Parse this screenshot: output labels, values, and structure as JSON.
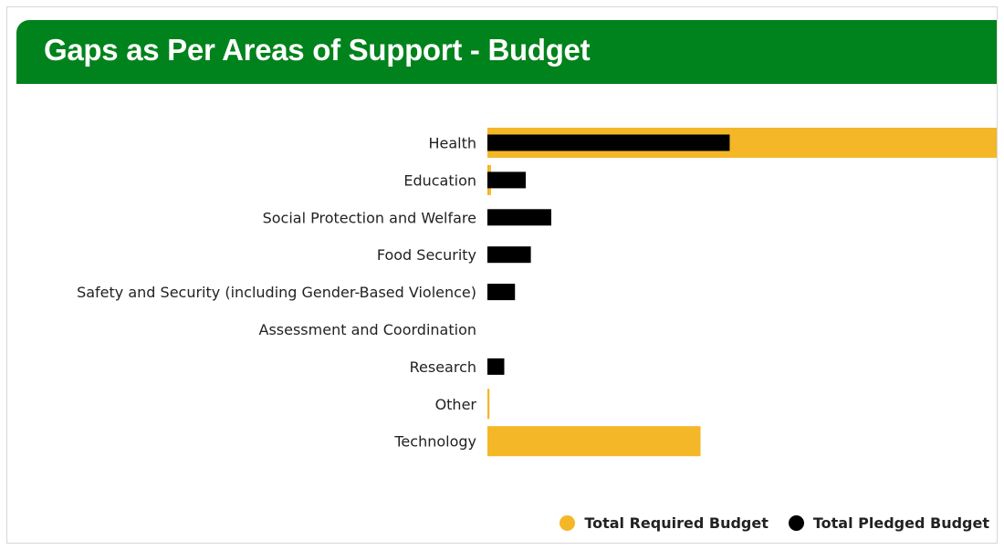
{
  "header": {
    "title": "Gaps as Per Areas of Support - Budget"
  },
  "colors": {
    "header": "#00821c",
    "required": "#f4b728",
    "pledged": "#000000"
  },
  "chart_data": {
    "type": "bar",
    "orientation": "horizontal",
    "title": "",
    "categories": [
      "Health",
      "Education",
      "Social Protection and Welfare",
      "Food Security",
      "Safety and Security (including Gender-Based Violence)",
      "Assessment and Coordination",
      "Research",
      "Other",
      "Technology"
    ],
    "series": [
      {
        "name": "Total Required Budget",
        "color": "#f4b728",
        "values": [
          100,
          0.7,
          0,
          0,
          0,
          0,
          0,
          0.4,
          41.7
        ]
      },
      {
        "name": "Total Pledged Budget",
        "color": "#000000",
        "values": [
          47.4,
          7.5,
          12.5,
          8.5,
          5.4,
          0,
          3.3,
          0,
          0
        ]
      }
    ],
    "xlim": [
      0,
      100
    ],
    "grid": false,
    "legend_position": "bottom-right"
  }
}
